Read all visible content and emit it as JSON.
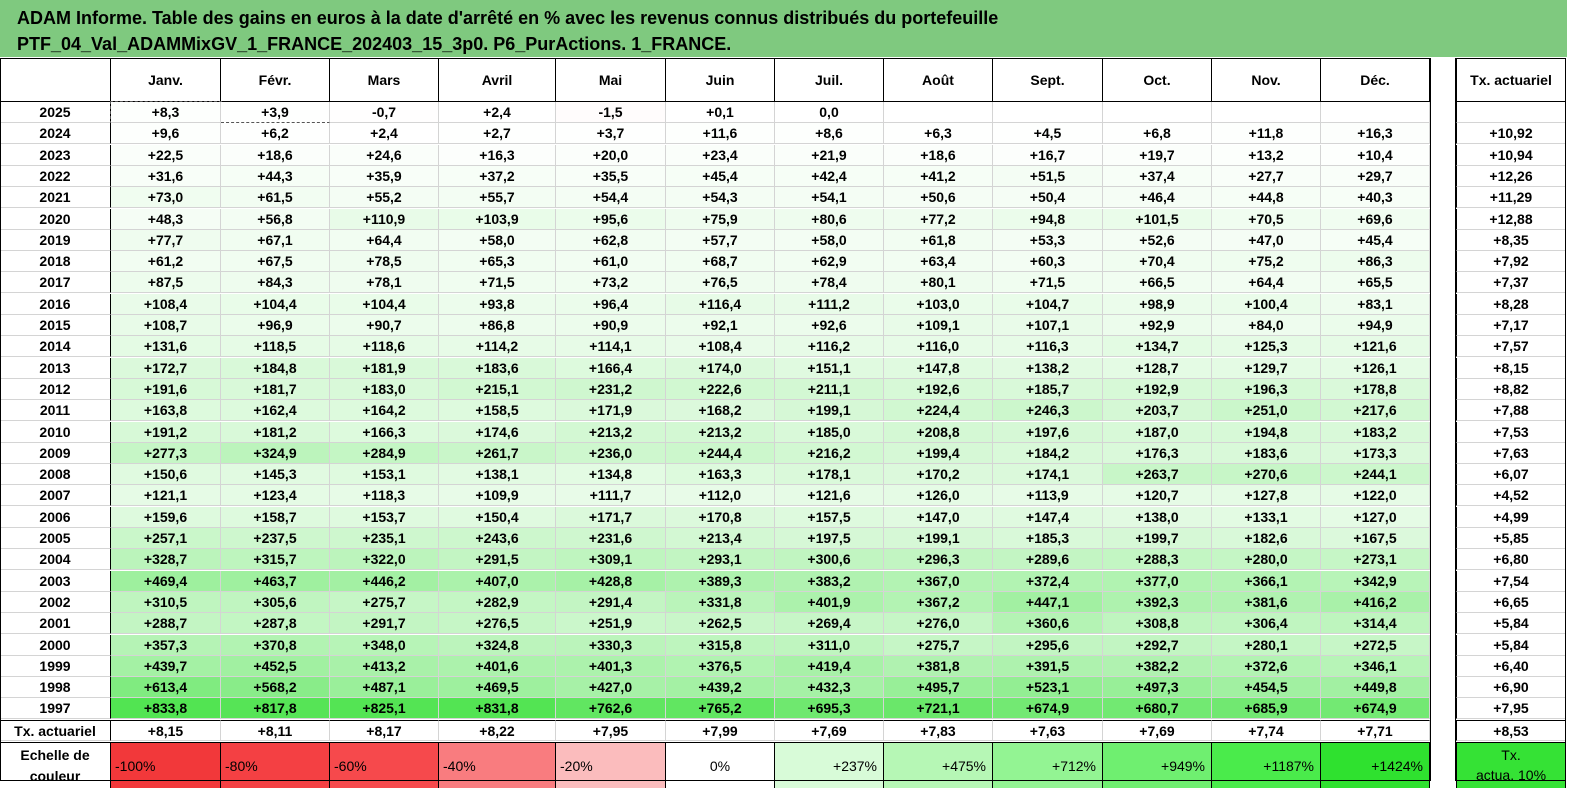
{
  "title": {
    "line1": "ADAM Informe. Table des gains en euros à la date d'arrêté en % avec les revenus connus distribués du portefeuille",
    "line2": "PTF_04_Val_ADAMMixGV_1_FRANCE_202403_15_3p0. P6_PurActions. 1_FRANCE."
  },
  "months": [
    "Janv.",
    "Févr.",
    "Mars",
    "Avril",
    "Mai",
    "Juin",
    "Juil.",
    "Août",
    "Sept.",
    "Oct.",
    "Nov.",
    "Déc."
  ],
  "tx_header": "Tx. actuariel",
  "rows": [
    {
      "year": "2025",
      "values": [
        "+8,3",
        "+3,9",
        "-0,7",
        "+2,4",
        "-1,5",
        "+0,1",
        "0,0",
        "",
        "",
        "",
        "",
        ""
      ],
      "tx": ""
    },
    {
      "year": "2024",
      "values": [
        "+9,6",
        "+6,2",
        "+2,4",
        "+2,7",
        "+3,7",
        "+11,6",
        "+8,6",
        "+6,3",
        "+4,5",
        "+6,8",
        "+11,8",
        "+16,3"
      ],
      "tx": "+10,92"
    },
    {
      "year": "2023",
      "values": [
        "+22,5",
        "+18,6",
        "+24,6",
        "+16,3",
        "+20,0",
        "+23,4",
        "+21,9",
        "+18,6",
        "+16,7",
        "+19,7",
        "+13,2",
        "+10,4"
      ],
      "tx": "+10,94"
    },
    {
      "year": "2022",
      "values": [
        "+31,6",
        "+44,3",
        "+35,9",
        "+37,2",
        "+35,5",
        "+45,4",
        "+42,4",
        "+41,2",
        "+51,5",
        "+37,4",
        "+27,7",
        "+29,7"
      ],
      "tx": "+12,26"
    },
    {
      "year": "2021",
      "values": [
        "+73,0",
        "+61,5",
        "+55,2",
        "+55,7",
        "+54,4",
        "+54,3",
        "+54,1",
        "+50,6",
        "+50,4",
        "+46,4",
        "+44,8",
        "+40,3"
      ],
      "tx": "+11,29"
    },
    {
      "year": "2020",
      "values": [
        "+48,3",
        "+56,8",
        "+110,9",
        "+103,9",
        "+95,6",
        "+75,9",
        "+80,6",
        "+77,2",
        "+94,8",
        "+101,5",
        "+70,5",
        "+69,6"
      ],
      "tx": "+12,88"
    },
    {
      "year": "2019",
      "values": [
        "+77,7",
        "+67,1",
        "+64,4",
        "+58,0",
        "+62,8",
        "+57,7",
        "+58,0",
        "+61,8",
        "+53,3",
        "+52,6",
        "+47,0",
        "+45,4"
      ],
      "tx": "+8,35"
    },
    {
      "year": "2018",
      "values": [
        "+61,2",
        "+67,5",
        "+78,5",
        "+65,3",
        "+61,0",
        "+68,7",
        "+62,9",
        "+63,4",
        "+60,3",
        "+70,4",
        "+75,2",
        "+86,3"
      ],
      "tx": "+7,92"
    },
    {
      "year": "2017",
      "values": [
        "+87,5",
        "+84,3",
        "+78,1",
        "+71,5",
        "+73,2",
        "+76,5",
        "+78,4",
        "+80,1",
        "+71,5",
        "+66,5",
        "+64,4",
        "+65,5"
      ],
      "tx": "+7,37"
    },
    {
      "year": "2016",
      "values": [
        "+108,4",
        "+104,4",
        "+104,4",
        "+93,8",
        "+96,4",
        "+116,4",
        "+111,2",
        "+103,0",
        "+104,7",
        "+98,9",
        "+100,4",
        "+83,1"
      ],
      "tx": "+8,28"
    },
    {
      "year": "2015",
      "values": [
        "+108,7",
        "+96,9",
        "+90,7",
        "+86,8",
        "+90,9",
        "+92,1",
        "+92,6",
        "+109,1",
        "+107,1",
        "+92,9",
        "+84,0",
        "+94,9"
      ],
      "tx": "+7,17"
    },
    {
      "year": "2014",
      "values": [
        "+131,6",
        "+118,5",
        "+118,6",
        "+114,2",
        "+114,1",
        "+108,4",
        "+116,2",
        "+116,0",
        "+116,3",
        "+134,7",
        "+125,3",
        "+121,6"
      ],
      "tx": "+7,57"
    },
    {
      "year": "2013",
      "values": [
        "+172,7",
        "+184,8",
        "+181,9",
        "+183,6",
        "+166,4",
        "+174,0",
        "+151,1",
        "+147,8",
        "+138,2",
        "+128,7",
        "+129,7",
        "+126,1"
      ],
      "tx": "+8,15"
    },
    {
      "year": "2012",
      "values": [
        "+191,6",
        "+181,7",
        "+183,0",
        "+215,1",
        "+231,2",
        "+222,6",
        "+211,1",
        "+192,6",
        "+185,7",
        "+192,9",
        "+196,3",
        "+178,8"
      ],
      "tx": "+8,82"
    },
    {
      "year": "2011",
      "values": [
        "+163,8",
        "+162,4",
        "+164,2",
        "+158,5",
        "+171,9",
        "+168,2",
        "+199,1",
        "+224,4",
        "+246,3",
        "+203,7",
        "+251,0",
        "+217,6"
      ],
      "tx": "+7,88"
    },
    {
      "year": "2010",
      "values": [
        "+191,2",
        "+181,2",
        "+166,3",
        "+174,6",
        "+213,2",
        "+213,2",
        "+185,0",
        "+208,8",
        "+197,6",
        "+187,0",
        "+194,8",
        "+183,2"
      ],
      "tx": "+7,53"
    },
    {
      "year": "2009",
      "values": [
        "+277,3",
        "+324,9",
        "+284,9",
        "+261,7",
        "+236,0",
        "+244,4",
        "+216,2",
        "+199,4",
        "+184,2",
        "+176,3",
        "+183,6",
        "+173,3"
      ],
      "tx": "+7,63"
    },
    {
      "year": "2008",
      "values": [
        "+150,6",
        "+145,3",
        "+153,1",
        "+138,1",
        "+134,8",
        "+163,3",
        "+178,1",
        "+170,2",
        "+174,1",
        "+263,7",
        "+270,6",
        "+244,1"
      ],
      "tx": "+6,07"
    },
    {
      "year": "2007",
      "values": [
        "+121,1",
        "+123,4",
        "+118,3",
        "+109,9",
        "+111,7",
        "+112,0",
        "+121,6",
        "+126,0",
        "+113,9",
        "+120,7",
        "+127,8",
        "+122,0"
      ],
      "tx": "+4,52"
    },
    {
      "year": "2006",
      "values": [
        "+159,6",
        "+158,7",
        "+153,7",
        "+150,4",
        "+171,7",
        "+170,8",
        "+157,5",
        "+147,0",
        "+147,4",
        "+138,0",
        "+133,1",
        "+127,0"
      ],
      "tx": "+4,99"
    },
    {
      "year": "2005",
      "values": [
        "+257,1",
        "+237,5",
        "+235,1",
        "+243,6",
        "+231,6",
        "+213,4",
        "+197,5",
        "+199,1",
        "+185,3",
        "+199,7",
        "+182,6",
        "+167,5"
      ],
      "tx": "+5,85"
    },
    {
      "year": "2004",
      "values": [
        "+328,7",
        "+315,7",
        "+322,0",
        "+291,5",
        "+309,1",
        "+293,1",
        "+300,6",
        "+296,3",
        "+289,6",
        "+288,3",
        "+280,0",
        "+273,1"
      ],
      "tx": "+6,80"
    },
    {
      "year": "2003",
      "values": [
        "+469,4",
        "+463,7",
        "+446,2",
        "+407,0",
        "+428,8",
        "+389,3",
        "+383,2",
        "+367,0",
        "+372,4",
        "+377,0",
        "+366,1",
        "+342,9"
      ],
      "tx": "+7,54"
    },
    {
      "year": "2002",
      "values": [
        "+310,5",
        "+305,6",
        "+275,7",
        "+282,9",
        "+291,4",
        "+331,8",
        "+401,9",
        "+367,2",
        "+447,1",
        "+392,3",
        "+381,6",
        "+416,2"
      ],
      "tx": "+6,65"
    },
    {
      "year": "2001",
      "values": [
        "+288,7",
        "+287,8",
        "+291,7",
        "+276,5",
        "+251,9",
        "+262,5",
        "+269,4",
        "+276,0",
        "+360,6",
        "+308,8",
        "+306,4",
        "+314,4"
      ],
      "tx": "+5,84"
    },
    {
      "year": "2000",
      "values": [
        "+357,3",
        "+370,8",
        "+348,0",
        "+324,8",
        "+330,3",
        "+315,8",
        "+311,0",
        "+275,7",
        "+295,6",
        "+292,7",
        "+280,1",
        "+272,5"
      ],
      "tx": "+5,84"
    },
    {
      "year": "1999",
      "values": [
        "+439,7",
        "+452,5",
        "+413,2",
        "+401,6",
        "+401,3",
        "+376,5",
        "+419,4",
        "+381,8",
        "+391,5",
        "+382,2",
        "+372,6",
        "+346,1"
      ],
      "tx": "+6,40"
    },
    {
      "year": "1998",
      "values": [
        "+613,4",
        "+568,2",
        "+487,1",
        "+469,5",
        "+427,0",
        "+439,2",
        "+432,3",
        "+495,7",
        "+523,1",
        "+497,3",
        "+454,5",
        "+449,8"
      ],
      "tx": "+6,90"
    },
    {
      "year": "1997",
      "values": [
        "+833,8",
        "+817,8",
        "+825,1",
        "+831,8",
        "+762,6",
        "+765,2",
        "+695,3",
        "+721,1",
        "+674,9",
        "+680,7",
        "+685,9",
        "+674,9"
      ],
      "tx": "+7,95"
    }
  ],
  "footer": {
    "label": "Tx. actuariel",
    "values": [
      "+8,15",
      "+8,11",
      "+8,17",
      "+8,22",
      "+7,95",
      "+7,99",
      "+7,69",
      "+7,83",
      "+7,63",
      "+7,69",
      "+7,74",
      "+7,71"
    ],
    "tx": "+8,53"
  },
  "legend": {
    "label_line1": "Echelle de",
    "label_line2": "couleur",
    "scale": [
      "-100%",
      "-80%",
      "-60%",
      "-40%",
      "-20%",
      "0%",
      "+237%",
      "+475%",
      "+712%",
      "+949%",
      "+1187%",
      "+1424%"
    ],
    "colors": [
      "#f2383a",
      "#f44043",
      "#f6494c",
      "#f97c7f",
      "#fbbcbd",
      "#ffffff",
      "#d8fbd8",
      "#b6f7b5",
      "#93f493",
      "#6fef70",
      "#4aeb4b",
      "#2fe12f"
    ],
    "tx_line1": "Tx.",
    "tx_line2": "actua. 10%",
    "tx_color": "#35e235"
  },
  "colors": {
    "title_bg": "#7fc97f",
    "max_green": "#4fe34f"
  }
}
